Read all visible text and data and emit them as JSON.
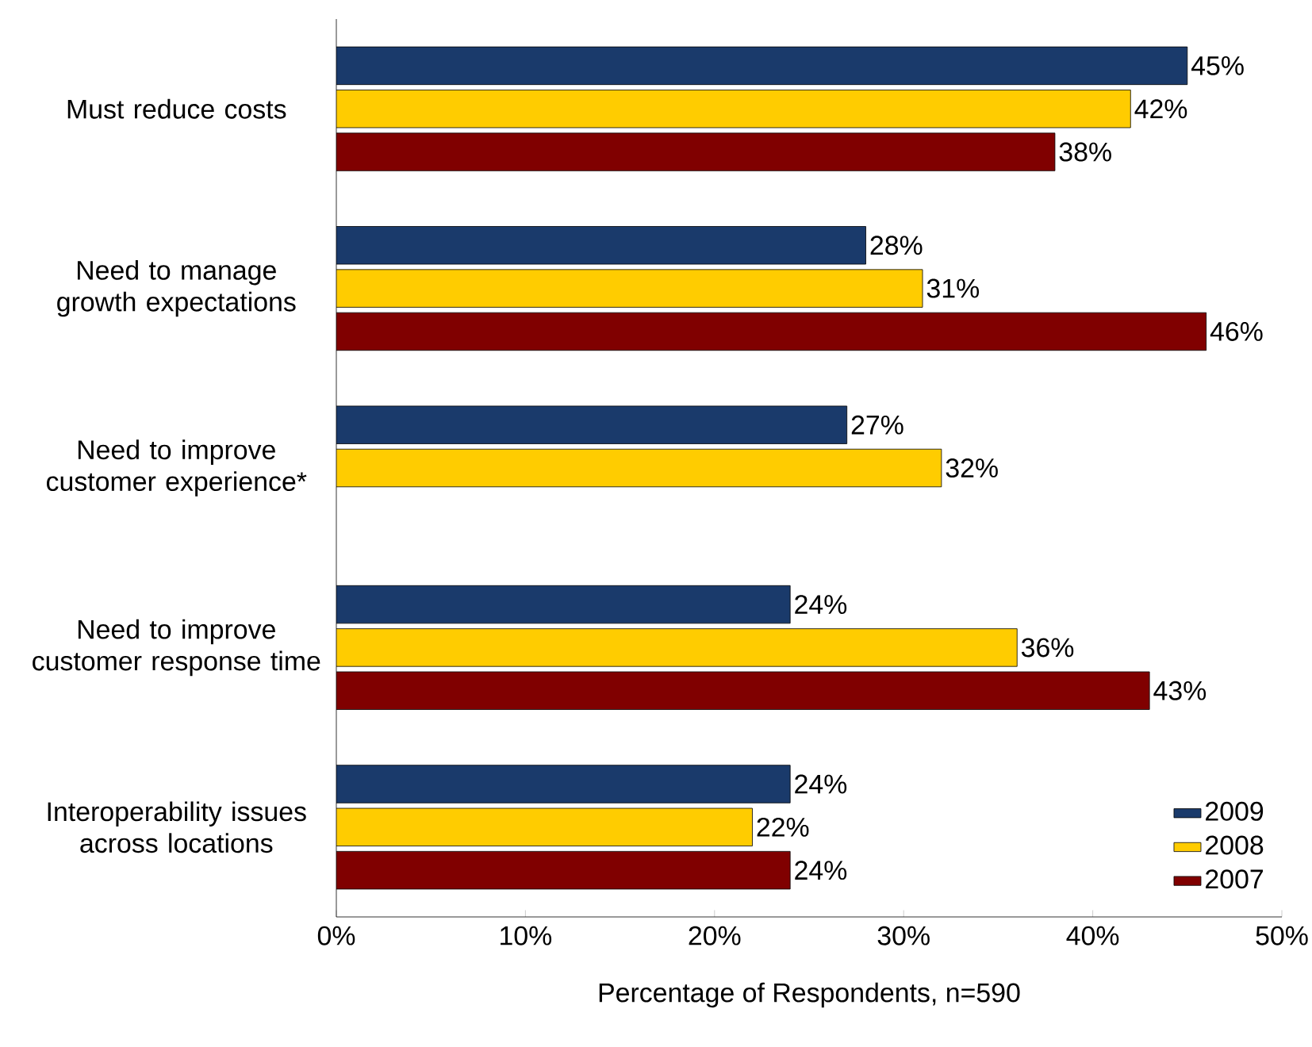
{
  "chart_data": {
    "type": "bar",
    "orientation": "horizontal",
    "categories": [
      "Must reduce costs",
      "Need to manage growth expectations",
      "Need to improve customer experience*",
      "Need to improve customer response time",
      "Interoperability issues across locations"
    ],
    "series": [
      {
        "name": "2009",
        "color": "#1a3a6b",
        "values": [
          45,
          28,
          27,
          24,
          24
        ],
        "value_labels": [
          "45%",
          "28%",
          "27%",
          "24%",
          "24%"
        ]
      },
      {
        "name": "2008",
        "color": "#ffcc00",
        "values": [
          42,
          31,
          32,
          36,
          22
        ],
        "value_labels": [
          "42%",
          "31%",
          "32%",
          "36%",
          "22%"
        ]
      },
      {
        "name": "2007",
        "color": "#800000",
        "values": [
          38,
          46,
          null,
          43,
          24
        ],
        "value_labels": [
          "38%",
          "46%",
          null,
          "43%",
          "24%"
        ]
      }
    ],
    "xlim": [
      0,
      50
    ],
    "xticks": [
      {
        "value": 0,
        "label": "0%"
      },
      {
        "value": 10,
        "label": "10%"
      },
      {
        "value": 20,
        "label": "20%"
      },
      {
        "value": 30,
        "label": "30%"
      },
      {
        "value": 40,
        "label": "40%"
      },
      {
        "value": 50,
        "label": "50%"
      }
    ],
    "xlabel": "Percentage of Respondents, n=590",
    "legend": "bottom right",
    "grid": false
  }
}
